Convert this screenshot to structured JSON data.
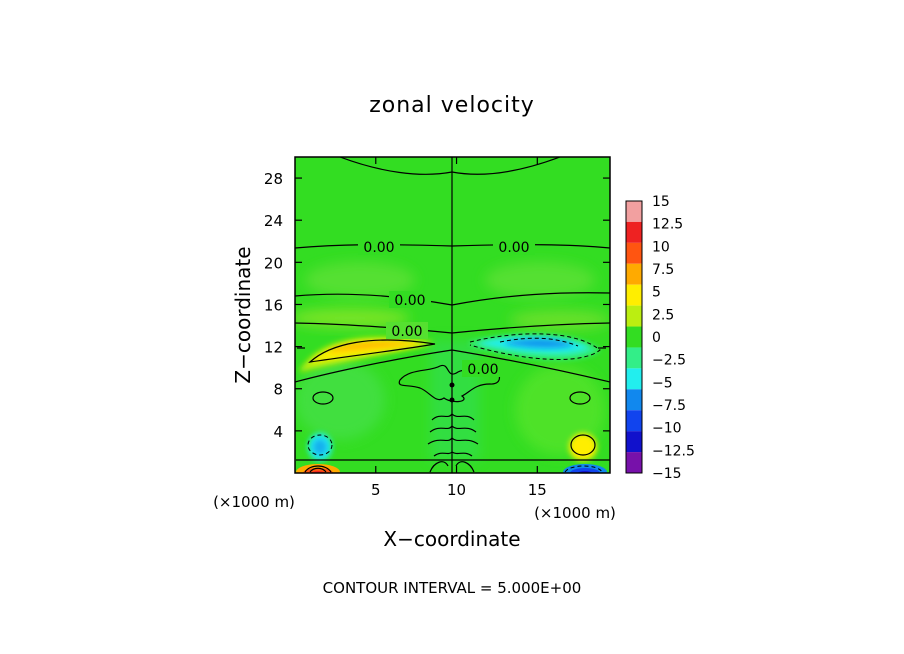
{
  "chart_data": {
    "type": "heatmap",
    "title": "zonal velocity",
    "xlabel": "X−coordinate",
    "ylabel": "Z−coordinate",
    "x_unit_left": "(×1000 m)",
    "x_unit_right": "(×1000 m)",
    "x_range": [
      0,
      19.5
    ],
    "y_range": [
      0,
      30
    ],
    "x_ticks": [
      5,
      10,
      15
    ],
    "y_ticks": [
      4,
      8,
      12,
      16,
      20,
      24,
      28
    ],
    "contour_labels": [
      "0.00",
      "0.00",
      "0.00",
      "0.00",
      "0.00"
    ],
    "footer": "CONTOUR INTERVAL = 5.000E+00",
    "colorbar": {
      "levels": [
        15,
        12.5,
        10,
        7.5,
        5,
        2.5,
        0,
        -2.5,
        -5,
        -7.5,
        -10,
        -12.5,
        -15
      ],
      "labels": [
        "15",
        "12.5",
        "10",
        "7.5",
        "5",
        "2.5",
        "0",
        "−2.5",
        "−5",
        "−7.5",
        "−10",
        "−12.5",
        "−15"
      ],
      "colors": [
        "#f2a0a0",
        "#ee2222",
        "#ff5511",
        "#ffaa00",
        "#ffee00",
        "#bbee11",
        "#33dd22",
        "#33ee88",
        "#22eeee",
        "#1188ee",
        "#1144ee",
        "#1111cc",
        "#7711aa"
      ]
    },
    "features": [
      {
        "x": 5.0,
        "y": 11.8,
        "value": 7.0
      },
      {
        "x": 14.5,
        "y": 12.0,
        "value": -6.5
      },
      {
        "x": 1.5,
        "y": 2.2,
        "value": -4.0
      },
      {
        "x": 18.0,
        "y": 2.2,
        "value": 6.0
      },
      {
        "x": 1.5,
        "y": 0.2,
        "value": 12.0
      },
      {
        "x": 18.0,
        "y": 0.2,
        "value": -12.0
      },
      {
        "x": 2.5,
        "y": 18.8,
        "value": 1.5
      },
      {
        "x": 16.5,
        "y": 18.8,
        "value": 1.5
      }
    ]
  }
}
